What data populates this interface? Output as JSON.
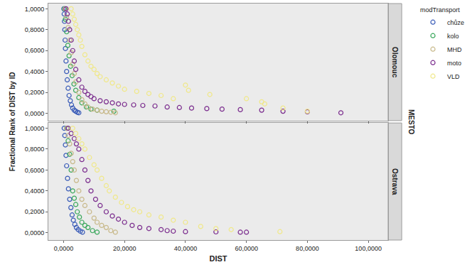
{
  "chart_data": {
    "type": "scatter",
    "x_label": "DIST",
    "y_label": "Fractional Rank of DIST by ID",
    "legend_title": "modTransport",
    "facet_title": "MESTO",
    "legend": "right",
    "marker": "circle-open",
    "grid": false,
    "xlim": [
      -5,
      106.5
    ],
    "xticks": [
      {
        "value": 0,
        "label": "0,0000"
      },
      {
        "value": 20,
        "label": "20,0000"
      },
      {
        "value": 40,
        "label": "40,0000"
      },
      {
        "value": 60,
        "label": "60,0000"
      },
      {
        "value": 80,
        "label": "80,0000"
      },
      {
        "value": 100,
        "label": "100,0000"
      }
    ],
    "ylim": [
      -0.07,
      1.05
    ],
    "yticks": [
      {
        "value": 0,
        "label": "0,0000"
      },
      {
        "value": 0.2,
        "label": "0,2000"
      },
      {
        "value": 0.4,
        "label": "0,4000"
      },
      {
        "value": 0.6,
        "label": "0,6000"
      },
      {
        "value": 0.8,
        "label": "0,8000"
      },
      {
        "value": 1,
        "label": "1,0000"
      }
    ],
    "panels": [
      {
        "name": "Olomouc",
        "series": [
          {
            "name": "chůze",
            "color": "#3a5cb8",
            "x": [
              0.1,
              0.2,
              0.3,
              0.4,
              0.5,
              0.6,
              0.8,
              1.0,
              1.2,
              1.5,
              1.8,
              2.2,
              2.6,
              3.0,
              3.5,
              4.0,
              4.5,
              5.0
            ],
            "y": [
              1.0,
              0.95,
              0.88,
              0.8,
              0.7,
              0.62,
              0.5,
              0.4,
              0.32,
              0.24,
              0.17,
              0.12,
              0.08,
              0.05,
              0.03,
              0.02,
              0.01,
              0.005
            ]
          },
          {
            "name": "kolo",
            "color": "#3aa85c",
            "x": [
              0.3,
              0.6,
              1.0,
              1.4,
              1.8,
              2.3,
              2.8,
              3.4,
              4.0,
              5.0,
              6.0,
              7.5,
              9.0,
              11.0,
              16.5
            ],
            "y": [
              1.0,
              0.9,
              0.78,
              0.65,
              0.55,
              0.45,
              0.36,
              0.28,
              0.22,
              0.15,
              0.1,
              0.06,
              0.04,
              0.03,
              0.02
            ]
          },
          {
            "name": "MHD",
            "color": "#c8b98a",
            "x": [
              0.5,
              1.0,
              1.5,
              2.0,
              2.5,
              3.0,
              3.5,
              4.0,
              5.0,
              6.0,
              7.0,
              8.0,
              9.5,
              11.0,
              12.5,
              14.0,
              15.5,
              17.0
            ],
            "y": [
              1.0,
              0.92,
              0.82,
              0.7,
              0.58,
              0.47,
              0.38,
              0.3,
              0.2,
              0.13,
              0.09,
              0.06,
              0.04,
              0.03,
              0.02,
              0.015,
              0.01,
              0.005
            ]
          },
          {
            "name": "moto",
            "color": "#7b2d8e",
            "x": [
              0.8,
              1.2,
              1.6,
              2.0,
              2.5,
              3.0,
              3.5,
              4.0,
              5.0,
              6.0,
              7.0,
              8.0,
              9.0,
              10.0,
              12,
              14,
              16,
              18,
              20,
              23,
              26,
              30,
              34,
              38,
              42,
              47,
              52,
              58,
              65,
              72,
              80,
              91
            ],
            "y": [
              1.0,
              0.95,
              0.88,
              0.8,
              0.7,
              0.6,
              0.5,
              0.42,
              0.32,
              0.25,
              0.21,
              0.18,
              0.16,
              0.14,
              0.12,
              0.11,
              0.1,
              0.09,
              0.085,
              0.08,
              0.075,
              0.07,
              0.06,
              0.055,
              0.05,
              0.045,
              0.04,
              0.035,
              0.03,
              0.02,
              0.015,
              0.005
            ]
          },
          {
            "name": "VLD",
            "color": "#f0e88a",
            "x": [
              2.5,
              3,
              3.5,
              4,
              4.5,
              5,
              5.5,
              6,
              7,
              8,
              9,
              10,
              11,
              12,
              14,
              16,
              18,
              20,
              24,
              28,
              32,
              36,
              40,
              41,
              48,
              60,
              65,
              66,
              72,
              80
            ],
            "y": [
              1.0,
              0.95,
              0.9,
              0.85,
              0.8,
              0.75,
              0.7,
              0.64,
              0.56,
              0.5,
              0.45,
              0.42,
              0.38,
              0.35,
              0.32,
              0.29,
              0.26,
              0.23,
              0.21,
              0.19,
              0.17,
              0.14,
              0.27,
              0.22,
              0.18,
              0.14,
              0.11,
              0.09,
              0.05,
              0.02
            ]
          }
        ]
      },
      {
        "name": "Ostrava",
        "series": [
          {
            "name": "chůze",
            "color": "#3a5cb8",
            "x": [
              0.2,
              0.4,
              0.6,
              0.8,
              1.0,
              1.3,
              1.6,
              2.0,
              2.4,
              2.8,
              3.2,
              3.7,
              4.2,
              4.8,
              5.5,
              6.2
            ],
            "y": [
              1.0,
              0.93,
              0.84,
              0.74,
              0.64,
              0.52,
              0.42,
              0.32,
              0.24,
              0.17,
              0.12,
              0.08,
              0.05,
              0.03,
              0.015,
              0.005
            ]
          },
          {
            "name": "kolo",
            "color": "#3aa85c",
            "x": [
              1.0,
              1.5,
              2.0,
              2.5,
              3.0,
              3.5,
              4.0,
              4.5,
              5.2,
              6.0,
              7.0,
              8.0,
              9.5,
              11.0
            ],
            "y": [
              1.0,
              0.88,
              0.75,
              0.6,
              0.4,
              0.33,
              0.27,
              0.2,
              0.15,
              0.1,
              0.07,
              0.05,
              0.02,
              0.005
            ]
          },
          {
            "name": "MHD",
            "color": "#c8b98a",
            "x": [
              1.0,
              1.5,
              2.0,
              2.5,
              3.0,
              3.5,
              4.2,
              5.0,
              6.0,
              7.0,
              8.5,
              10.0,
              11.0,
              12.5,
              14.0,
              15.5,
              17.0
            ],
            "y": [
              1.0,
              0.93,
              0.85,
              0.76,
              0.68,
              0.6,
              0.5,
              0.4,
              0.32,
              0.26,
              0.2,
              0.14,
              0.1,
              0.07,
              0.05,
              0.02,
              0.005
            ]
          },
          {
            "name": "moto",
            "color": "#7b2d8e",
            "x": [
              1.5,
              2.5,
              3.5,
              4.2,
              5.0,
              6.0,
              7.0,
              8.0,
              9.0,
              10.5,
              12.0,
              14.0,
              16.0,
              18.0,
              20.0,
              22.5,
              25.0,
              28.0,
              32.0,
              34.0,
              36.0,
              40.0,
              50.0,
              58.0,
              60.0
            ],
            "y": [
              1.0,
              0.95,
              0.9,
              0.85,
              0.8,
              0.7,
              0.6,
              0.5,
              0.4,
              0.32,
              0.26,
              0.2,
              0.16,
              0.13,
              0.1,
              0.07,
              0.05,
              0.04,
              0.03,
              0.02,
              0.015,
              0.01,
              0.008,
              0.005,
              0.005
            ]
          },
          {
            "name": "VLD",
            "color": "#f0e88a",
            "x": [
              3.0,
              4.0,
              5.0,
              6.0,
              7.0,
              8.5,
              10.0,
              11.0,
              12.5,
              14.0,
              15.0,
              17.0,
              19.0,
              21.0,
              23.0,
              25.0,
              28.0,
              32.0,
              36.0,
              40.0,
              45.0,
              50.0,
              55.0,
              71.0
            ],
            "y": [
              1.0,
              0.95,
              0.9,
              0.85,
              0.8,
              0.72,
              0.65,
              0.6,
              0.52,
              0.45,
              0.4,
              0.34,
              0.29,
              0.25,
              0.22,
              0.2,
              0.17,
              0.15,
              0.12,
              0.1,
              0.06,
              0.04,
              0.03,
              0.01
            ]
          }
        ]
      }
    ]
  }
}
